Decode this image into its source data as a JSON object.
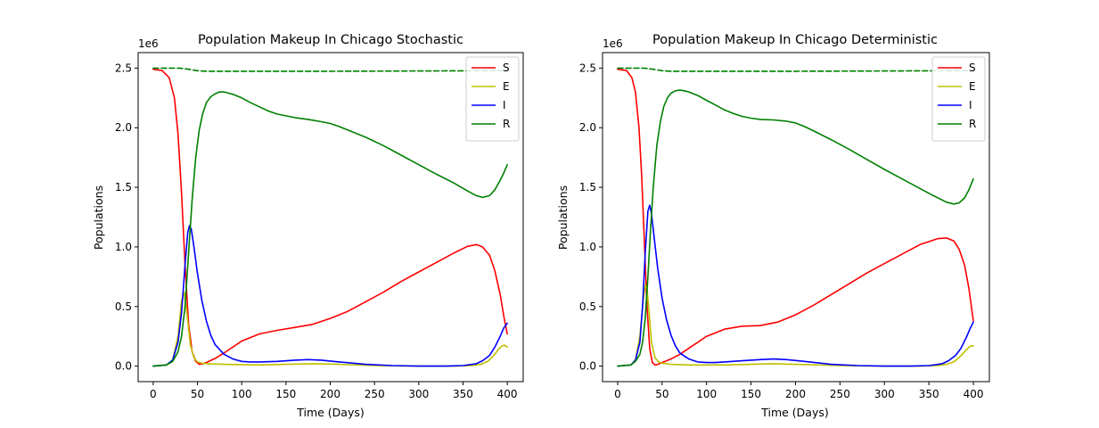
{
  "chart_data": [
    {
      "type": "line",
      "title": "Population Makeup In Chicago Stochastic",
      "xlabel": "Time (Days)",
      "ylabel": "Populations",
      "offset_text": "1e6",
      "xlim": [
        -17,
        418
      ],
      "ylim": [
        -0.13,
        2.63
      ],
      "xticks": [
        0,
        50,
        100,
        150,
        200,
        250,
        300,
        350,
        400
      ],
      "xtick_labels": [
        "0",
        "50",
        "100",
        "150",
        "200",
        "250",
        "300",
        "350",
        "400"
      ],
      "yticks": [
        0.0,
        0.5,
        1.0,
        1.5,
        2.0,
        2.5
      ],
      "ytick_labels": [
        "0.0",
        "0.5",
        "1.0",
        "1.5",
        "2.0",
        "2.5"
      ],
      "legend_position": "top-right",
      "series": [
        {
          "name": "S",
          "color": "#ff0000",
          "dashed": false,
          "x": [
            0,
            10,
            18,
            24,
            28,
            32,
            36,
            40,
            44,
            48,
            52,
            56,
            60,
            70,
            80,
            90,
            100,
            120,
            140,
            160,
            180,
            200,
            220,
            240,
            260,
            280,
            300,
            320,
            340,
            355,
            365,
            372,
            380,
            386,
            392,
            396,
            400
          ],
          "y": [
            2.49,
            2.48,
            2.42,
            2.25,
            1.95,
            1.45,
            0.85,
            0.35,
            0.12,
            0.04,
            0.015,
            0.02,
            0.03,
            0.065,
            0.11,
            0.16,
            0.21,
            0.27,
            0.3,
            0.325,
            0.35,
            0.4,
            0.46,
            0.54,
            0.62,
            0.71,
            0.79,
            0.87,
            0.95,
            1.005,
            1.02,
            1.0,
            0.93,
            0.8,
            0.6,
            0.42,
            0.27
          ]
        },
        {
          "name": "E",
          "color": "#bfbf00",
          "dashed": false,
          "x": [
            0,
            15,
            22,
            28,
            32,
            35,
            38,
            42,
            46,
            50,
            55,
            60,
            80,
            120,
            150,
            180,
            210,
            250,
            300,
            340,
            360,
            370,
            378,
            385,
            390,
            394,
            397,
            400
          ],
          "y": [
            0.0,
            0.01,
            0.05,
            0.25,
            0.55,
            0.62,
            0.45,
            0.18,
            0.07,
            0.035,
            0.025,
            0.02,
            0.015,
            0.01,
            0.015,
            0.02,
            0.015,
            0.005,
            0.0,
            0.0,
            0.005,
            0.015,
            0.04,
            0.09,
            0.14,
            0.17,
            0.175,
            0.16
          ]
        },
        {
          "name": "I",
          "color": "#0000ff",
          "dashed": false,
          "x": [
            0,
            15,
            22,
            28,
            32,
            36,
            39,
            41,
            43,
            46,
            50,
            55,
            60,
            65,
            70,
            80,
            90,
            100,
            110,
            120,
            140,
            160,
            175,
            190,
            210,
            240,
            270,
            300,
            330,
            350,
            365,
            372,
            380,
            386,
            392,
            396,
            400
          ],
          "y": [
            0.0,
            0.01,
            0.05,
            0.2,
            0.45,
            0.85,
            1.12,
            1.18,
            1.15,
            1.0,
            0.78,
            0.55,
            0.38,
            0.26,
            0.18,
            0.1,
            0.06,
            0.04,
            0.035,
            0.035,
            0.04,
            0.05,
            0.055,
            0.05,
            0.035,
            0.015,
            0.005,
            0.0,
            0.0,
            0.005,
            0.02,
            0.045,
            0.09,
            0.16,
            0.25,
            0.32,
            0.36
          ]
        },
        {
          "name": "R",
          "color": "#008000",
          "dashed": false,
          "x": [
            0,
            15,
            22,
            28,
            32,
            36,
            40,
            44,
            48,
            52,
            56,
            60,
            65,
            70,
            75,
            80,
            90,
            100,
            110,
            120,
            130,
            140,
            150,
            160,
            175,
            190,
            200,
            210,
            220,
            240,
            260,
            280,
            300,
            320,
            340,
            355,
            365,
            372,
            380,
            386,
            392,
            396,
            400
          ],
          "y": [
            0.0,
            0.01,
            0.04,
            0.12,
            0.25,
            0.5,
            0.95,
            1.4,
            1.75,
            1.98,
            2.12,
            2.21,
            2.26,
            2.285,
            2.3,
            2.3,
            2.28,
            2.25,
            2.21,
            2.175,
            2.14,
            2.115,
            2.1,
            2.085,
            2.07,
            2.05,
            2.035,
            2.01,
            1.98,
            1.92,
            1.85,
            1.77,
            1.69,
            1.61,
            1.535,
            1.47,
            1.43,
            1.415,
            1.43,
            1.48,
            1.56,
            1.62,
            1.69
          ]
        },
        {
          "name": "",
          "color": "#008000",
          "dashed": true,
          "x": [
            0,
            20,
            30,
            40,
            50,
            60,
            100,
            200,
            300,
            400
          ],
          "y": [
            2.5,
            2.5,
            2.5,
            2.49,
            2.478,
            2.474,
            2.474,
            2.474,
            2.476,
            2.479
          ]
        }
      ]
    },
    {
      "type": "line",
      "title": "Population Makeup In Chicago Deterministic",
      "xlabel": "Time (Days)",
      "ylabel": "Populations",
      "offset_text": "1e6",
      "xlim": [
        -17,
        418
      ],
      "ylim": [
        -0.13,
        2.63
      ],
      "xticks": [
        0,
        50,
        100,
        150,
        200,
        250,
        300,
        350,
        400
      ],
      "xtick_labels": [
        "0",
        "50",
        "100",
        "150",
        "200",
        "250",
        "300",
        "350",
        "400"
      ],
      "yticks": [
        0.0,
        0.5,
        1.0,
        1.5,
        2.0,
        2.5
      ],
      "ytick_labels": [
        "0.0",
        "0.5",
        "1.0",
        "1.5",
        "2.0",
        "2.5"
      ],
      "legend_position": "top-right",
      "series": [
        {
          "name": "S",
          "color": "#ff0000",
          "dashed": false,
          "x": [
            0,
            10,
            16,
            20,
            24,
            27,
            30,
            33,
            36,
            39,
            42,
            45,
            50,
            60,
            70,
            80,
            90,
            100,
            120,
            140,
            160,
            180,
            200,
            220,
            240,
            260,
            280,
            300,
            320,
            340,
            360,
            370,
            378,
            384,
            390,
            395,
            400
          ],
          "y": [
            2.49,
            2.48,
            2.42,
            2.3,
            2.0,
            1.6,
            1.05,
            0.5,
            0.15,
            0.03,
            0.01,
            0.015,
            0.03,
            0.06,
            0.1,
            0.15,
            0.2,
            0.25,
            0.31,
            0.335,
            0.34,
            0.37,
            0.43,
            0.51,
            0.6,
            0.69,
            0.78,
            0.86,
            0.94,
            1.02,
            1.07,
            1.075,
            1.05,
            0.98,
            0.85,
            0.65,
            0.38
          ]
        },
        {
          "name": "E",
          "color": "#bfbf00",
          "dashed": false,
          "x": [
            0,
            15,
            20,
            25,
            28,
            31,
            33,
            35,
            38,
            42,
            46,
            50,
            60,
            80,
            120,
            150,
            175,
            200,
            250,
            300,
            340,
            360,
            370,
            378,
            385,
            390,
            394,
            397,
            400
          ],
          "y": [
            0.0,
            0.01,
            0.05,
            0.25,
            0.5,
            0.68,
            0.65,
            0.48,
            0.2,
            0.07,
            0.035,
            0.025,
            0.015,
            0.01,
            0.01,
            0.015,
            0.02,
            0.015,
            0.005,
            0.0,
            0.0,
            0.005,
            0.015,
            0.035,
            0.08,
            0.12,
            0.15,
            0.17,
            0.17
          ]
        },
        {
          "name": "I",
          "color": "#0000ff",
          "dashed": false,
          "x": [
            0,
            15,
            20,
            25,
            28,
            31,
            34,
            36,
            38,
            41,
            45,
            50,
            55,
            60,
            65,
            70,
            80,
            90,
            100,
            110,
            120,
            140,
            160,
            175,
            190,
            210,
            240,
            270,
            300,
            330,
            350,
            365,
            372,
            380,
            386,
            392,
            396,
            400
          ],
          "y": [
            0.0,
            0.01,
            0.05,
            0.2,
            0.5,
            0.95,
            1.3,
            1.35,
            1.28,
            1.08,
            0.82,
            0.57,
            0.39,
            0.26,
            0.17,
            0.11,
            0.06,
            0.035,
            0.03,
            0.03,
            0.035,
            0.045,
            0.055,
            0.06,
            0.055,
            0.04,
            0.015,
            0.005,
            0.0,
            0.0,
            0.005,
            0.02,
            0.045,
            0.09,
            0.15,
            0.24,
            0.31,
            0.37
          ]
        },
        {
          "name": "R",
          "color": "#008000",
          "dashed": false,
          "x": [
            0,
            15,
            20,
            25,
            28,
            31,
            34,
            37,
            40,
            44,
            48,
            52,
            56,
            60,
            65,
            70,
            75,
            80,
            90,
            100,
            110,
            120,
            130,
            140,
            150,
            160,
            175,
            190,
            200,
            210,
            220,
            240,
            260,
            280,
            300,
            320,
            340,
            355,
            370,
            378,
            384,
            390,
            395,
            400
          ],
          "y": [
            0.0,
            0.01,
            0.04,
            0.1,
            0.2,
            0.4,
            0.75,
            1.15,
            1.5,
            1.85,
            2.05,
            2.18,
            2.25,
            2.29,
            2.31,
            2.315,
            2.31,
            2.3,
            2.27,
            2.23,
            2.19,
            2.15,
            2.12,
            2.095,
            2.08,
            2.07,
            2.065,
            2.055,
            2.04,
            2.01,
            1.975,
            1.9,
            1.82,
            1.735,
            1.65,
            1.57,
            1.49,
            1.43,
            1.375,
            1.36,
            1.37,
            1.41,
            1.48,
            1.57
          ]
        },
        {
          "name": "",
          "color": "#008000",
          "dashed": true,
          "x": [
            0,
            20,
            30,
            40,
            50,
            60,
            100,
            200,
            300,
            400
          ],
          "y": [
            2.5,
            2.5,
            2.5,
            2.49,
            2.478,
            2.474,
            2.474,
            2.474,
            2.476,
            2.479
          ]
        }
      ]
    }
  ]
}
